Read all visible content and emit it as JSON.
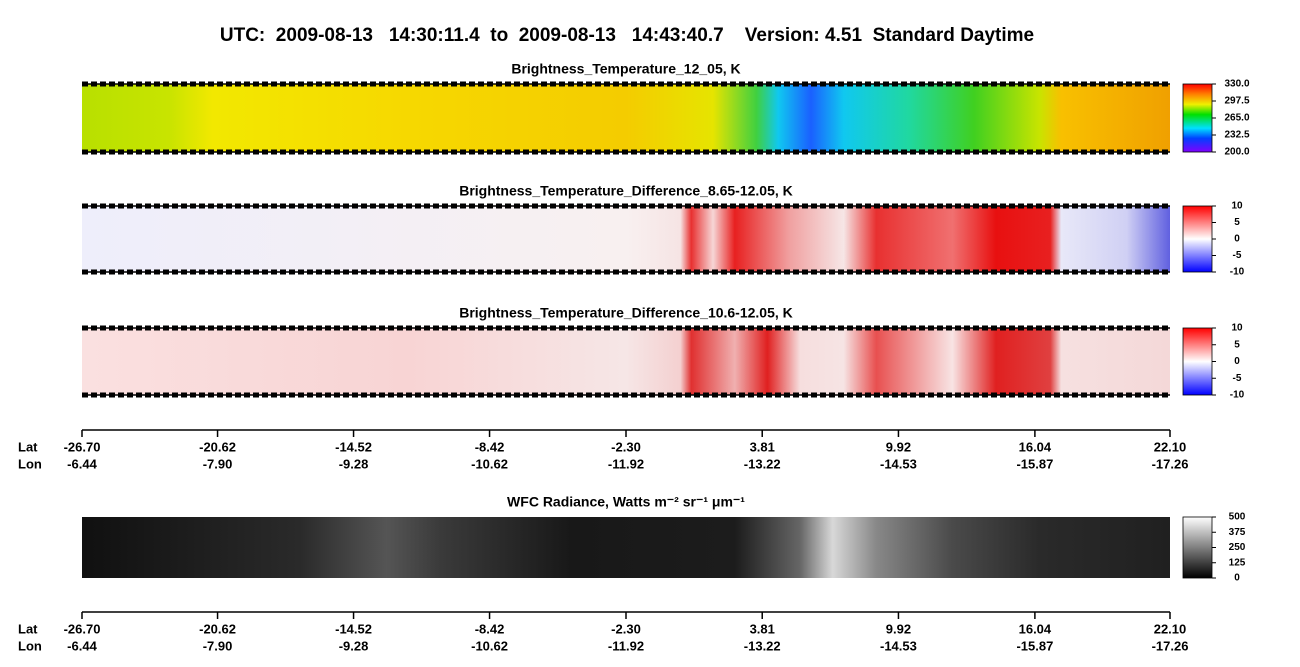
{
  "title": "UTC:  2009-08-13   14:30:11.4  to  2009-08-13   14:43:40.7    Version: 4.51  Standard Daytime",
  "chart_data": [
    {
      "type": "heatmap",
      "title": "Brightness_Temperature_12_05, K",
      "colormap": "rainbow",
      "clim": [
        200,
        330
      ],
      "cticks": [
        {
          "value": 330,
          "label": "330.0"
        },
        297.5,
        {
          "value": 265,
          "label": "265.0"
        },
        232.5,
        {
          "value": 200,
          "label": "200.0"
        }
      ]
    },
    {
      "type": "heatmap",
      "title": "Brightness_Temperature_Difference_8.65-12.05, K",
      "colormap": "bwr-cold",
      "clim": [
        -10,
        10
      ],
      "cticks": [
        10,
        5,
        0,
        -5,
        -10
      ]
    },
    {
      "type": "heatmap",
      "title": "Brightness_Temperature_Difference_10.6-12.05, K",
      "colormap": "bwr-warm",
      "clim": [
        -10,
        10
      ],
      "cticks": [
        10,
        5,
        0,
        -5,
        -10
      ]
    },
    {
      "type": "axis",
      "labels": [
        "Lat",
        "Lon"
      ],
      "xlim": [
        -26.7,
        22.1
      ],
      "xticks": [
        {
          "value": -26.7,
          "label": "-26.70"
        },
        -20.62,
        -14.52,
        -8.42,
        {
          "value": -2.3,
          "label": "-2.30"
        },
        3.81,
        9.92,
        16.04,
        {
          "value": 22.1,
          "label": "22.10"
        }
      ],
      "xticks2": [
        -6.44,
        {
          "value": -7.9,
          "label": "-7.90"
        },
        -9.28,
        -10.62,
        -11.92,
        -13.22,
        -14.53,
        -15.87,
        -17.26
      ]
    },
    {
      "type": "heatmap",
      "title": "WFC Radiance, Watts m⁻² sr⁻¹ μm⁻¹",
      "colormap": "gray",
      "clim": [
        0,
        500
      ],
      "cticks": [
        500,
        375,
        250,
        125,
        0
      ]
    },
    {
      "type": "axis",
      "labels": [
        "Lat",
        "Lon"
      ],
      "xlim": [
        -26.7,
        22.1
      ],
      "xticks": [
        {
          "value": -26.7,
          "label": "-26.70"
        },
        -20.62,
        -14.52,
        -8.42,
        {
          "value": -2.3,
          "label": "-2.30"
        },
        3.81,
        9.92,
        16.04,
        {
          "value": 22.1,
          "label": "22.10"
        }
      ],
      "xticks2": [
        -6.44,
        {
          "value": -7.9,
          "label": "-7.90"
        },
        -9.28,
        -10.62,
        -11.92,
        -13.22,
        -14.53,
        -15.87,
        -17.26
      ]
    }
  ]
}
